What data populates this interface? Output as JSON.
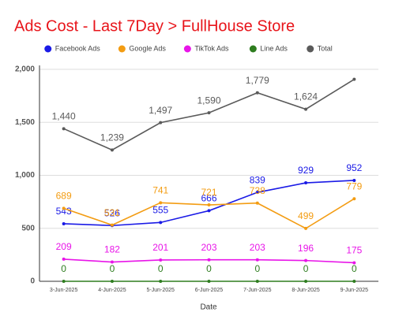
{
  "chart_data": {
    "type": "line",
    "title": "Ads Cost - Last 7Day > FullHouse Store",
    "x_label": "Date",
    "categories": [
      "3-Jun-2025",
      "4-Jun-2025",
      "5-Jun-2025",
      "6-Jun-2025",
      "7-Jun-2025",
      "8-Jun-2025",
      "9-Jun-2025"
    ],
    "series": [
      {
        "name": "Facebook Ads",
        "color": "#1a1ae6",
        "values": [
          543,
          526,
          555,
          666,
          839,
          929,
          952
        ]
      },
      {
        "name": "Google Ads",
        "color": "#f39c12",
        "values": [
          689,
          531,
          741,
          721,
          738,
          499,
          779
        ]
      },
      {
        "name": "TikTok Ads",
        "color": "#e815e8",
        "values": [
          209,
          182,
          201,
          203,
          203,
          196,
          175
        ]
      },
      {
        "name": "Line Ads",
        "color": "#2e7d1f",
        "values": [
          0,
          0,
          0,
          0,
          0,
          0,
          0
        ]
      },
      {
        "name": "Total",
        "color": "#5a5a5a",
        "values": [
          1440,
          1239,
          1497,
          1590,
          1779,
          1624,
          1906
        ],
        "value_labels": [
          "1,440",
          "1,239",
          "1,497",
          "1,590",
          "1,779",
          "1,624",
          null
        ]
      }
    ],
    "ylim": [
      0,
      2000
    ],
    "yticks": [
      0,
      500,
      {
        "value": 1000,
        "label": "1,000"
      },
      {
        "value": 1500,
        "label": "1,500"
      },
      {
        "value": 2000,
        "label": "2,000"
      }
    ],
    "grid": true,
    "legend": "top"
  }
}
